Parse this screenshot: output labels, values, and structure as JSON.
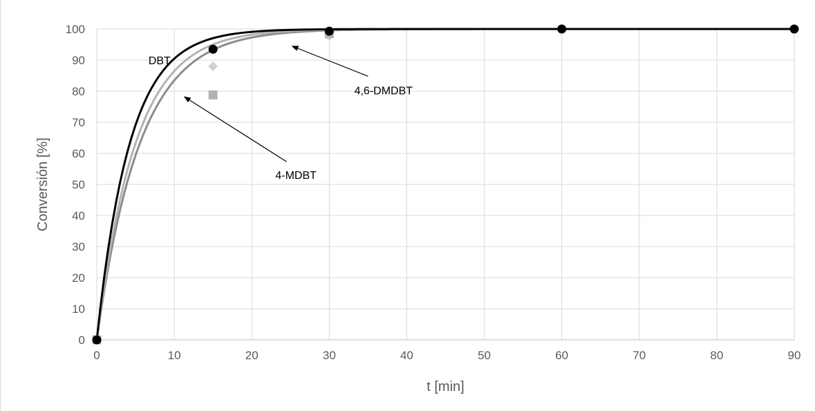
{
  "chart_data": {
    "type": "scatter",
    "xlabel": "t [min]",
    "ylabel": "Conversión [%]",
    "xlim": [
      0,
      90
    ],
    "ylim": [
      0,
      100
    ],
    "x_ticks": [
      0,
      10,
      20,
      30,
      40,
      50,
      60,
      70,
      80,
      90
    ],
    "y_ticks": [
      0,
      10,
      20,
      30,
      40,
      50,
      60,
      70,
      80,
      90,
      100
    ],
    "grid": true,
    "series": [
      {
        "name": "DBT",
        "color": "#000000",
        "marker": "circle",
        "points": [
          [
            0,
            0
          ],
          [
            15,
            93.5
          ],
          [
            30,
            99.3
          ],
          [
            60,
            100
          ],
          [
            90,
            100
          ]
        ],
        "fit_k": 0.235
      },
      {
        "name": "4-MDBT",
        "color": "#b3b3b3",
        "marker": "square",
        "points": [
          [
            0,
            0
          ],
          [
            15,
            78.8
          ],
          [
            30,
            98.5
          ]
        ],
        "fit_k": 0.2
      },
      {
        "name": "4,6-DMDBT",
        "color": "#d0d0d0",
        "marker": "diamond",
        "points": [
          [
            0,
            0
          ],
          [
            15,
            88
          ],
          [
            30,
            97.7
          ]
        ],
        "fit_k": 0.18
      }
    ],
    "curve_colors": [
      "#000000",
      "#b3b3b3",
      "#8c8c8c"
    ],
    "annotations": [
      {
        "text": "DBT",
        "at": [
          8.1,
          88.7
        ]
      },
      {
        "text": "4-MDBT",
        "at": [
          25.7,
          51.8
        ],
        "arrow_from": [
          24.5,
          57.3
        ],
        "arrow_to": [
          11.3,
          78.2
        ]
      },
      {
        "text": "4,6-DMDBT",
        "at": [
          37,
          79
        ],
        "arrow_from": [
          35,
          84.8
        ],
        "arrow_to": [
          25.2,
          94.5
        ]
      }
    ]
  }
}
